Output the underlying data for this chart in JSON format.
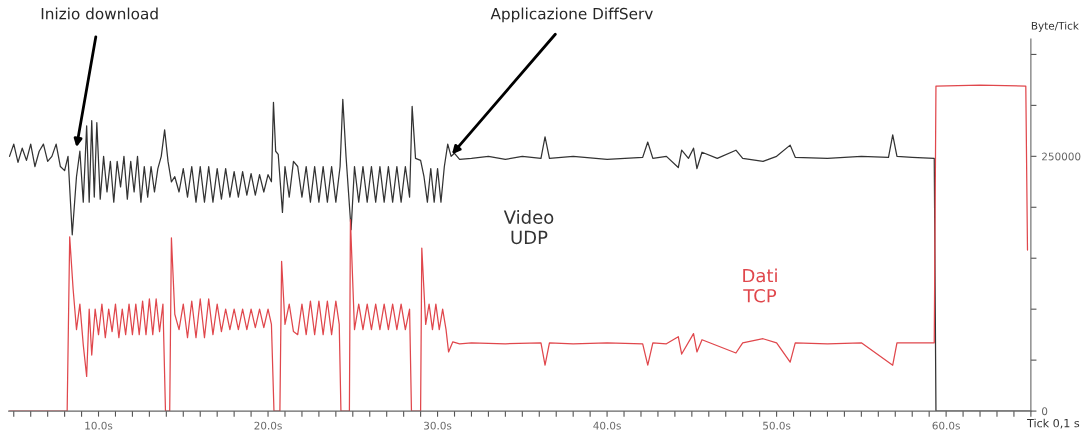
{
  "chart_data": {
    "type": "line",
    "xlabel": "Tick 0,1 s",
    "ylabel": "Byte/Tick",
    "xlim": [
      4.7,
      65
    ],
    "xticks": [
      {
        "value": 5,
        "label": null
      },
      {
        "value": 6,
        "label": null
      },
      {
        "value": 7,
        "label": null
      },
      {
        "value": 8,
        "label": null
      },
      {
        "value": 9,
        "label": null
      },
      {
        "value": 10,
        "label": "10.0s"
      },
      {
        "value": 11,
        "label": null
      },
      {
        "value": 12,
        "label": null
      },
      {
        "value": 13,
        "label": null
      },
      {
        "value": 14,
        "label": null
      },
      {
        "value": 15,
        "label": null
      },
      {
        "value": 16,
        "label": null
      },
      {
        "value": 17,
        "label": null
      },
      {
        "value": 18,
        "label": null
      },
      {
        "value": 19,
        "label": null
      },
      {
        "value": 20,
        "label": "20.0s"
      },
      {
        "value": 21,
        "label": null
      },
      {
        "value": 22,
        "label": null
      },
      {
        "value": 23,
        "label": null
      },
      {
        "value": 24,
        "label": null
      },
      {
        "value": 25,
        "label": null
      },
      {
        "value": 26,
        "label": null
      },
      {
        "value": 27,
        "label": null
      },
      {
        "value": 28,
        "label": null
      },
      {
        "value": 29,
        "label": null
      },
      {
        "value": 30,
        "label": "30.0s"
      },
      {
        "value": 31,
        "label": null
      },
      {
        "value": 32,
        "label": null
      },
      {
        "value": 33,
        "label": null
      },
      {
        "value": 34,
        "label": null
      },
      {
        "value": 35,
        "label": null
      },
      {
        "value": 36,
        "label": null
      },
      {
        "value": 37,
        "label": null
      },
      {
        "value": 38,
        "label": null
      },
      {
        "value": 39,
        "label": null
      },
      {
        "value": 40,
        "label": "40.0s"
      },
      {
        "value": 41,
        "label": null
      },
      {
        "value": 42,
        "label": null
      },
      {
        "value": 43,
        "label": null
      },
      {
        "value": 44,
        "label": null
      },
      {
        "value": 45,
        "label": null
      },
      {
        "value": 46,
        "label": null
      },
      {
        "value": 47,
        "label": null
      },
      {
        "value": 48,
        "label": null
      },
      {
        "value": 49,
        "label": null
      },
      {
        "value": 50,
        "label": "50.0s"
      },
      {
        "value": 51,
        "label": null
      },
      {
        "value": 52,
        "label": null
      },
      {
        "value": 53,
        "label": null
      },
      {
        "value": 54,
        "label": null
      },
      {
        "value": 55,
        "label": null
      },
      {
        "value": 56,
        "label": null
      },
      {
        "value": 57,
        "label": null
      },
      {
        "value": 58,
        "label": null
      },
      {
        "value": 59,
        "label": null
      },
      {
        "value": 60,
        "label": "60.0s"
      },
      {
        "value": 61,
        "label": null
      },
      {
        "value": 62,
        "label": null
      },
      {
        "value": 63,
        "label": null
      },
      {
        "value": 64,
        "label": null
      },
      {
        "value": 65,
        "label": null
      }
    ],
    "ylim": [
      0,
      365000
    ],
    "yticks": [
      0,
      {
        "value": 50000,
        "label": null
      },
      {
        "value": 100000,
        "label": null
      },
      {
        "value": 150000,
        "label": null
      },
      {
        "value": 200000,
        "label": null
      },
      250000,
      {
        "value": 300000,
        "label": null
      },
      {
        "value": 350000,
        "label": null
      }
    ],
    "grid": false,
    "legend": false,
    "marker": "none",
    "line_style": "solid",
    "annotations": [
      {
        "text": "Inizio download",
        "x": 8.7,
        "y": 259000
      },
      {
        "text": "Applicazione DiffServ",
        "x": 30.85,
        "y": 252000
      }
    ],
    "series": [
      {
        "name": "Video\nUDP",
        "color": "#333333",
        "x": [
          4.75,
          5.0,
          5.25,
          5.5,
          5.75,
          6.0,
          6.25,
          6.5,
          6.75,
          7.0,
          7.25,
          7.5,
          7.75,
          8.0,
          8.2,
          8.45,
          8.7,
          8.9,
          9.1,
          9.3,
          9.45,
          9.6,
          9.75,
          9.9,
          10.1,
          10.3,
          10.5,
          10.7,
          10.9,
          11.1,
          11.3,
          11.5,
          11.7,
          11.9,
          12.1,
          12.3,
          12.5,
          12.7,
          12.9,
          13.1,
          13.3,
          13.5,
          13.7,
          13.9,
          14.1,
          14.3,
          14.5,
          14.75,
          15.0,
          15.25,
          15.5,
          15.75,
          16.0,
          16.25,
          16.5,
          16.75,
          17.0,
          17.25,
          17.5,
          17.75,
          18.0,
          18.25,
          18.5,
          18.75,
          19.0,
          19.25,
          19.5,
          19.75,
          20.0,
          20.2,
          20.32,
          20.45,
          20.6,
          20.85,
          21.0,
          21.25,
          21.5,
          21.75,
          22.0,
          22.25,
          22.5,
          22.75,
          23.0,
          23.25,
          23.5,
          23.75,
          24.0,
          24.25,
          24.41,
          24.6,
          24.9,
          25.1,
          25.35,
          25.6,
          25.85,
          26.1,
          26.35,
          26.6,
          26.85,
          27.1,
          27.35,
          27.6,
          27.85,
          28.1,
          28.35,
          28.5,
          28.7,
          29.0,
          29.2,
          29.4,
          29.6,
          29.8,
          30.0,
          30.2,
          30.4,
          30.6,
          30.8,
          31.0,
          31.3,
          32,
          33,
          34,
          35,
          36.1,
          36.34,
          36.6,
          38,
          40,
          42.1,
          42.4,
          42.7,
          43.5,
          44.2,
          44.4,
          44.8,
          45.1,
          45.3,
          45.6,
          46.5,
          47.6,
          48,
          49.2,
          50,
          50.8,
          51.1,
          53,
          55,
          56.6,
          56.85,
          57.1,
          58,
          59.3,
          59.4,
          65
        ],
        "values": [
          250000,
          262000,
          244000,
          258000,
          246000,
          262000,
          240000,
          255000,
          262000,
          245000,
          250000,
          262000,
          240000,
          236000,
          250000,
          173000,
          230000,
          255000,
          205000,
          280000,
          205000,
          285000,
          210000,
          283000,
          208000,
          250000,
          215000,
          245000,
          205000,
          245000,
          220000,
          250000,
          208000,
          245000,
          215000,
          250000,
          205000,
          240000,
          210000,
          240000,
          215000,
          238000,
          250000,
          276000,
          245000,
          225000,
          230000,
          215000,
          238000,
          210000,
          240000,
          205000,
          240000,
          205000,
          240000,
          205000,
          238000,
          208000,
          238000,
          210000,
          235000,
          210000,
          235000,
          212000,
          233000,
          212000,
          232000,
          215000,
          232000,
          225000,
          303000,
          255000,
          252000,
          195000,
          240000,
          210000,
          245000,
          240000,
          210000,
          240000,
          205000,
          240000,
          205000,
          240000,
          205000,
          240000,
          205000,
          240000,
          306000,
          250000,
          178000,
          240000,
          205000,
          240000,
          205000,
          240000,
          205000,
          240000,
          205000,
          240000,
          205000,
          240000,
          205000,
          240000,
          210000,
          299000,
          248000,
          246000,
          230000,
          205000,
          238000,
          205000,
          238000,
          205000,
          240000,
          262000,
          250000,
          253000,
          247000,
          248000,
          250000,
          247000,
          250000,
          248000,
          269000,
          248000,
          250000,
          247000,
          249000,
          264000,
          248000,
          250000,
          239000,
          256000,
          248000,
          258000,
          238000,
          254000,
          248000,
          256000,
          248000,
          245000,
          250000,
          261000,
          249000,
          248000,
          250000,
          249000,
          271000,
          250000,
          249000,
          248000,
          0,
          0
        ]
      },
      {
        "name": "Dati\nTCP",
        "color": "#e0474c",
        "x": [
          4.75,
          8.15,
          8.3,
          8.5,
          8.7,
          8.9,
          9.1,
          9.3,
          9.45,
          9.6,
          9.8,
          10.0,
          10.2,
          10.4,
          10.6,
          10.8,
          11.0,
          11.2,
          11.4,
          11.6,
          11.8,
          12.0,
          12.2,
          12.4,
          12.6,
          12.8,
          13.0,
          13.2,
          13.4,
          13.6,
          13.8,
          13.95,
          14.2,
          14.3,
          14.5,
          14.75,
          15.0,
          15.25,
          15.5,
          15.75,
          16.0,
          16.25,
          16.5,
          16.75,
          17.0,
          17.25,
          17.5,
          17.75,
          18.0,
          18.25,
          18.5,
          18.75,
          19.0,
          19.25,
          19.5,
          19.75,
          20.0,
          20.2,
          20.35,
          20.7,
          20.8,
          21.0,
          21.25,
          21.5,
          21.75,
          22.0,
          22.25,
          22.5,
          22.75,
          23.0,
          23.25,
          23.5,
          23.75,
          24.0,
          24.2,
          24.3,
          24.8,
          24.86,
          25.1,
          25.35,
          25.6,
          25.85,
          26.1,
          26.35,
          26.6,
          26.85,
          27.1,
          27.35,
          27.6,
          27.85,
          28.1,
          28.35,
          28.46,
          29.0,
          29.07,
          29.3,
          29.5,
          29.7,
          29.9,
          30.1,
          30.3,
          30.5,
          30.65,
          30.9,
          31.3,
          32,
          34,
          36.1,
          36.34,
          36.6,
          38,
          40,
          42.1,
          42.4,
          42.7,
          43.5,
          44.2,
          44.4,
          45.1,
          45.3,
          45.6,
          47.6,
          48,
          49.2,
          50,
          50.8,
          51.1,
          53,
          55,
          56.85,
          57.1,
          59.3,
          59.4,
          62,
          64.7,
          64.8
        ],
        "values": [
          0,
          0,
          171000,
          120000,
          80000,
          105000,
          65000,
          34000,
          100000,
          55000,
          100000,
          75000,
          105000,
          72000,
          100000,
          78000,
          105000,
          72000,
          100000,
          75000,
          105000,
          75000,
          105000,
          75000,
          108000,
          75000,
          110000,
          75000,
          110000,
          78000,
          105000,
          0,
          0,
          170000,
          95000,
          80000,
          105000,
          72000,
          108000,
          72000,
          110000,
          72000,
          110000,
          75000,
          105000,
          78000,
          100000,
          80000,
          100000,
          80000,
          100000,
          80000,
          100000,
          82000,
          100000,
          82000,
          100000,
          85000,
          0,
          0,
          147000,
          85000,
          105000,
          78000,
          75000,
          105000,
          75000,
          108000,
          75000,
          108000,
          75000,
          108000,
          75000,
          108000,
          85000,
          0,
          0,
          188000,
          80000,
          105000,
          80000,
          105000,
          80000,
          105000,
          80000,
          105000,
          80000,
          105000,
          80000,
          105000,
          80000,
          100000,
          0,
          0,
          160000,
          85000,
          105000,
          80000,
          105000,
          80000,
          100000,
          80000,
          58000,
          68000,
          66000,
          67000,
          66000,
          67000,
          45000,
          67000,
          66000,
          67000,
          66000,
          45000,
          67000,
          66000,
          73000,
          56000,
          76000,
          58000,
          70000,
          57000,
          67000,
          71000,
          67000,
          48000,
          67000,
          66000,
          67000,
          45000,
          67000,
          67000,
          319000,
          320000,
          319000,
          158000
        ]
      }
    ]
  }
}
